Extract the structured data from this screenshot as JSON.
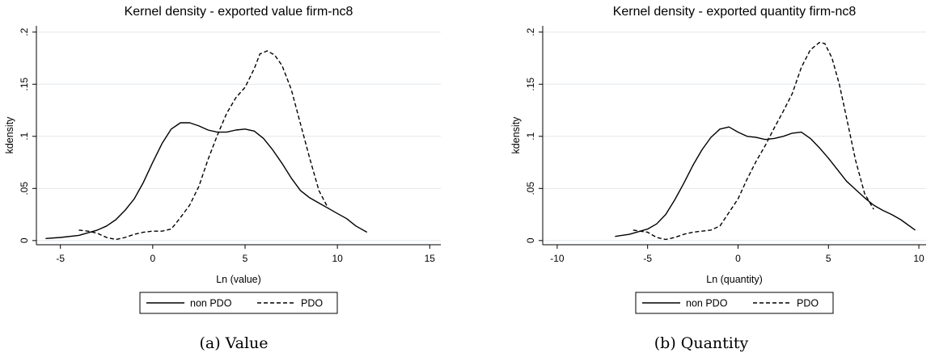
{
  "chart_data": [
    {
      "type": "line",
      "title": "Kernel density - exported value firm-nc8",
      "xlabel": "Ln (value)",
      "ylabel": "kdensity",
      "xlim": [
        -6.3,
        15.6
      ],
      "ylim": [
        -0.004,
        0.206
      ],
      "xticks": [
        -5,
        0,
        5,
        10,
        15
      ],
      "yticks": [
        0,
        0.05,
        0.1,
        0.15,
        0.2
      ],
      "xtick_labels": [
        "-5",
        "0",
        "5",
        "10",
        "15"
      ],
      "ytick_labels": [
        "0",
        ".05",
        ".1",
        ".15",
        ".2"
      ],
      "grid": true,
      "legend": "bottom",
      "caption": "(a)  Value",
      "series": [
        {
          "name": "non PDO",
          "style": "solid",
          "x": [
            -5.8,
            -5,
            -4,
            -3,
            -2.5,
            -2,
            -1.5,
            -1,
            -0.5,
            0,
            0.5,
            1,
            1.5,
            2,
            2.5,
            3,
            3.5,
            4,
            4.5,
            5,
            5.5,
            6,
            6.5,
            7,
            7.5,
            8,
            8.5,
            9,
            9.5,
            10,
            10.5,
            11,
            11.6
          ],
          "y": [
            0.002,
            0.003,
            0.005,
            0.01,
            0.014,
            0.02,
            0.029,
            0.04,
            0.056,
            0.075,
            0.093,
            0.107,
            0.113,
            0.113,
            0.11,
            0.106,
            0.104,
            0.104,
            0.106,
            0.107,
            0.105,
            0.098,
            0.087,
            0.074,
            0.06,
            0.048,
            0.041,
            0.036,
            0.031,
            0.026,
            0.021,
            0.014,
            0.008
          ]
        },
        {
          "name": "PDO",
          "style": "dashed",
          "x": [
            -4,
            -3.5,
            -3,
            -2.5,
            -2,
            -1.5,
            -1,
            -0.5,
            0,
            0.5,
            1,
            1.5,
            2,
            2.5,
            3,
            3.5,
            4,
            4.5,
            5,
            5.5,
            5.8,
            6.2,
            6.6,
            7,
            7.5,
            8,
            8.5,
            9,
            9.5
          ],
          "y": [
            0.01,
            0.009,
            0.007,
            0.003,
            0.001,
            0.003,
            0.006,
            0.008,
            0.009,
            0.009,
            0.011,
            0.022,
            0.034,
            0.052,
            0.078,
            0.101,
            0.122,
            0.137,
            0.147,
            0.165,
            0.179,
            0.182,
            0.178,
            0.168,
            0.145,
            0.112,
            0.079,
            0.048,
            0.031
          ]
        }
      ]
    },
    {
      "type": "line",
      "title": "Kernel density - exported quantity firm-nc8",
      "xlabel": "Ln (quantity)",
      "ylabel": "kdensity",
      "xlim": [
        -10.8,
        10.4
      ],
      "ylim": [
        -0.004,
        0.206
      ],
      "xticks": [
        -10,
        -5,
        0,
        5,
        10
      ],
      "yticks": [
        0,
        0.05,
        0.1,
        0.15,
        0.2
      ],
      "xtick_labels": [
        "-10",
        "-5",
        "0",
        "5",
        "10"
      ],
      "ytick_labels": [
        "0",
        ".05",
        ".1",
        ".15",
        ".2"
      ],
      "grid": true,
      "legend": "bottom",
      "caption": "(b)  Quantity",
      "series": [
        {
          "name": "non PDO",
          "style": "solid",
          "x": [
            -6.8,
            -6,
            -5,
            -4.5,
            -4,
            -3.5,
            -3,
            -2.5,
            -2,
            -1.5,
            -1,
            -0.5,
            0,
            0.5,
            1,
            1.5,
            2,
            2.5,
            3,
            3.5,
            4,
            4.5,
            5,
            5.5,
            6,
            6.5,
            7,
            7.5,
            8,
            8.5,
            9,
            9.8
          ],
          "y": [
            0.004,
            0.006,
            0.011,
            0.016,
            0.025,
            0.039,
            0.055,
            0.072,
            0.087,
            0.099,
            0.107,
            0.109,
            0.104,
            0.1,
            0.099,
            0.097,
            0.098,
            0.1,
            0.103,
            0.104,
            0.098,
            0.089,
            0.079,
            0.068,
            0.057,
            0.049,
            0.041,
            0.034,
            0.029,
            0.025,
            0.02,
            0.01
          ]
        },
        {
          "name": "PDO",
          "style": "dashed",
          "x": [
            -5.8,
            -5,
            -4.5,
            -4,
            -3.5,
            -3,
            -2.5,
            -2,
            -1.5,
            -1,
            -0.5,
            0,
            0.5,
            1,
            1.5,
            2,
            2.5,
            3,
            3.5,
            4,
            4.5,
            4.8,
            5.2,
            5.6,
            6,
            6.5,
            7,
            7.5
          ],
          "y": [
            0.01,
            0.008,
            0.003,
            0.001,
            0.003,
            0.006,
            0.008,
            0.009,
            0.01,
            0.014,
            0.027,
            0.04,
            0.059,
            0.076,
            0.091,
            0.108,
            0.124,
            0.141,
            0.166,
            0.183,
            0.19,
            0.189,
            0.175,
            0.15,
            0.118,
            0.077,
            0.045,
            0.03
          ]
        }
      ]
    }
  ]
}
